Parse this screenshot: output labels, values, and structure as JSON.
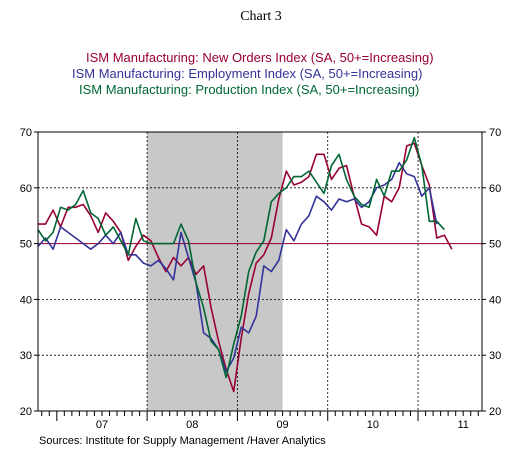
{
  "chart_data": {
    "type": "line",
    "title": "Chart 3",
    "source": "Sources:  Institute for Supply Management /Haver Analytics",
    "ylim": [
      20,
      70
    ],
    "y_ticks": [
      "20",
      "30",
      "40",
      "50",
      "60",
      "70"
    ],
    "x_ticks": [
      "07",
      "08",
      "09",
      "10",
      "11"
    ],
    "x_range": [
      "2006-10",
      "2011-09"
    ],
    "reference_line": 50,
    "recession": [
      "2008-01",
      "2009-06"
    ],
    "grid": "dashed",
    "legend_position": "top",
    "series": [
      {
        "name": "ISM Manufacturing: New Orders Index (SA, 50+=Increasing)",
        "color": "#990033",
        "start": "2006-10",
        "values": [
          53.5,
          53.5,
          56.0,
          53.0,
          56.5,
          56.5,
          57.0,
          55.0,
          52.0,
          55.5,
          54.0,
          52.0,
          47.0,
          49.5,
          51.5,
          50.5,
          47.5,
          45.0,
          47.5,
          46.0,
          47.5,
          44.5,
          46.0,
          38.5,
          32.5,
          27.5,
          23.5,
          33.0,
          41.0,
          46.5,
          48.0,
          51.0,
          58.0,
          63.0,
          60.5,
          61.0,
          62.0,
          66.0,
          66.0,
          61.5,
          63.5,
          64.0,
          58.5,
          53.5,
          53.0,
          51.5,
          58.5,
          57.5,
          60.0,
          67.5,
          68.0,
          64.0,
          60.5,
          51.0,
          51.5,
          49.0
        ]
      },
      {
        "name": "ISM Manufacturing: Employment Index (SA, 50+=Increasing)",
        "color": "#333399",
        "start": "2006-10",
        "values": [
          49.5,
          51.0,
          49.0,
          53.0,
          52.0,
          51.0,
          50.0,
          49.0,
          50.0,
          51.5,
          50.0,
          52.0,
          48.0,
          48.0,
          46.5,
          46.0,
          47.0,
          45.5,
          43.5,
          52.0,
          47.5,
          43.0,
          34.0,
          33.0,
          31.0,
          27.0,
          29.5,
          35.0,
          34.0,
          37.0,
          46.0,
          45.0,
          47.0,
          52.5,
          50.5,
          53.5,
          55.0,
          58.5,
          57.5,
          56.0,
          58.0,
          57.5,
          58.0,
          56.5,
          57.5,
          60.0,
          60.5,
          61.5,
          64.5,
          62.5,
          62.0,
          58.5,
          60.0,
          53.5
        ]
      },
      {
        "name": "ISM Manufacturing: Production Index (SA, 50+=Increasing)",
        "color": "#006633",
        "start": "2006-10",
        "values": [
          52.5,
          50.5,
          52.0,
          56.5,
          56.0,
          57.0,
          59.5,
          55.5,
          54.5,
          51.5,
          53.0,
          50.5,
          48.0,
          54.5,
          50.5,
          50.0,
          50.0,
          50.0,
          50.0,
          53.5,
          50.5,
          43.0,
          38.5,
          32.5,
          31.0,
          26.0,
          32.0,
          37.0,
          45.0,
          48.5,
          50.5,
          57.5,
          59.0,
          60.0,
          62.0,
          62.0,
          63.0,
          61.0,
          59.0,
          64.0,
          66.0,
          61.5,
          58.5,
          57.0,
          56.5,
          61.5,
          58.5,
          63.0,
          63.0,
          65.0,
          69.0,
          64.0,
          54.0,
          54.0,
          52.5
        ]
      }
    ]
  }
}
